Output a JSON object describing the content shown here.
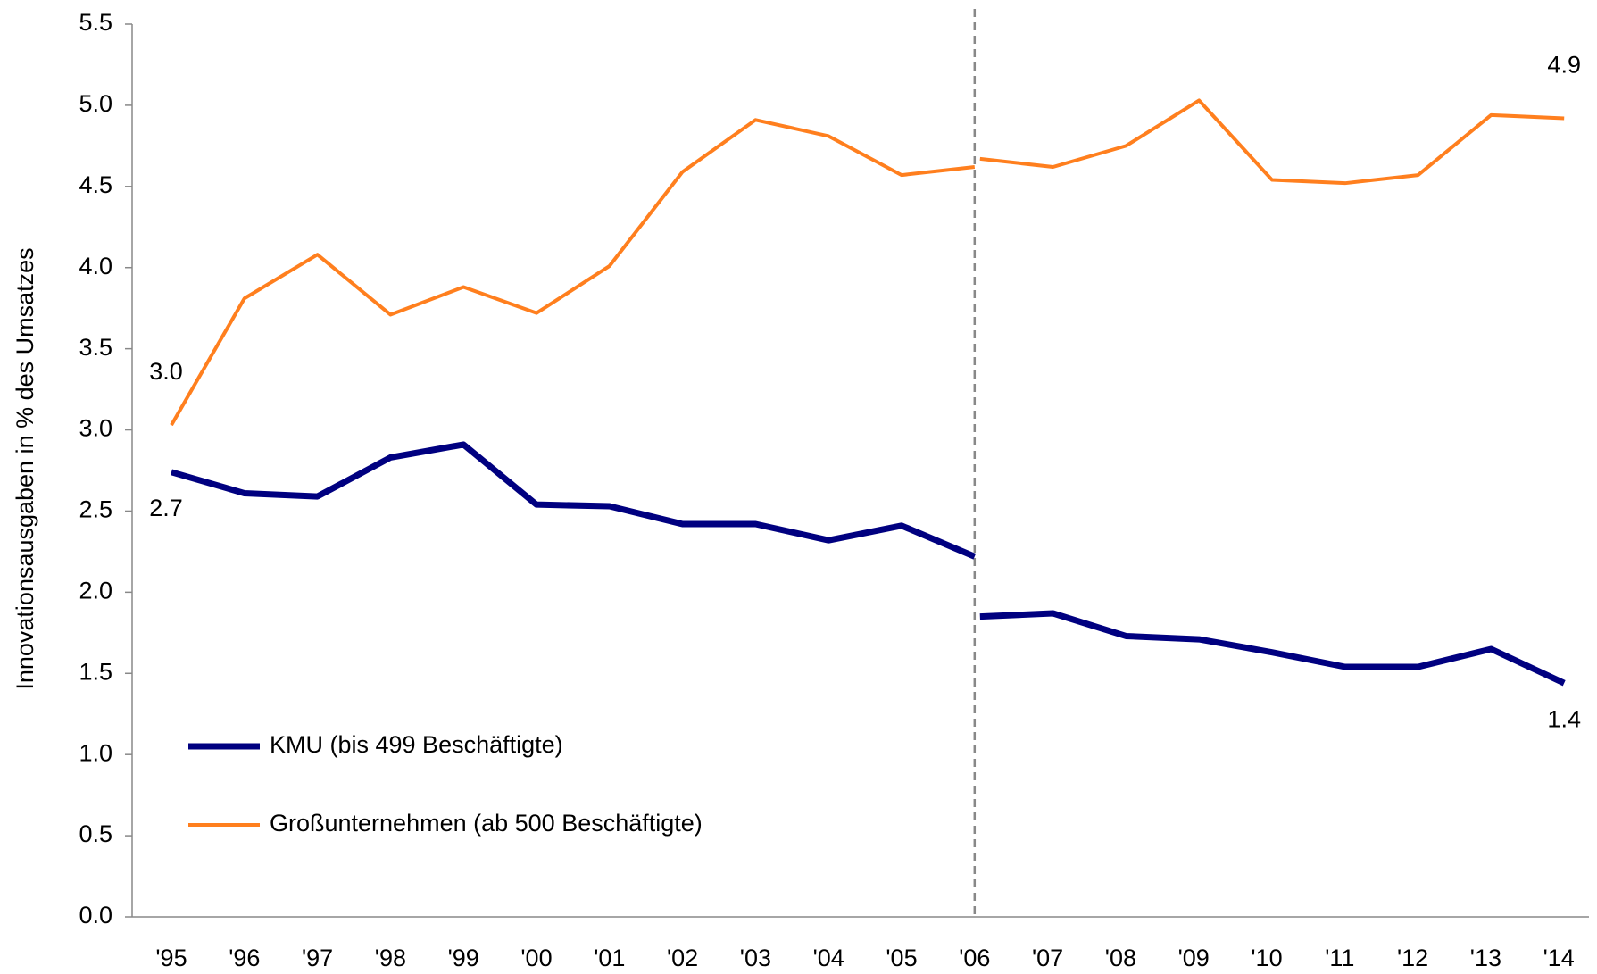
{
  "chart_data": {
    "type": "line",
    "ylabel": "Innovationsausgaben in % des Umsatzes",
    "categories": [
      "'95",
      "'96",
      "'97",
      "'98",
      "'99",
      "'00",
      "'01",
      "'02",
      "'03",
      "'04",
      "'05",
      "'06",
      "'07",
      "'08",
      "'09",
      "'10",
      "'11",
      "'12",
      "'13",
      "'14"
    ],
    "ylim": [
      0,
      5.5
    ],
    "yticks": [
      {
        "value": 0,
        "label": "0.0"
      },
      0.5,
      {
        "value": 1,
        "label": "1.0"
      },
      1.5,
      {
        "value": 2,
        "label": "2.0"
      },
      2.5,
      {
        "value": 3,
        "label": "3.0"
      },
      3.5,
      {
        "value": 4,
        "label": "4.0"
      },
      4.5,
      {
        "value": 5,
        "label": "5.0"
      },
      5.5
    ],
    "vline_at": "'06",
    "legend": "lower left",
    "series": [
      {
        "name": "KMU (bis 499 Beschäftigte)",
        "color": "#000080",
        "width": 7,
        "values": [
          2.74,
          2.61,
          2.59,
          2.83,
          2.91,
          2.54,
          2.53,
          2.42,
          2.42,
          2.32,
          2.41,
          2.22,
          null,
          null,
          null,
          null,
          null,
          null,
          null,
          null
        ],
        "value_labels": [
          "2.7",
          null,
          null,
          null,
          null,
          null,
          null,
          null,
          null,
          null,
          null,
          null,
          null,
          null,
          null,
          null,
          null,
          null,
          null,
          null
        ],
        "values_new": [
          null,
          null,
          null,
          null,
          null,
          null,
          null,
          null,
          null,
          null,
          null,
          1.85,
          1.87,
          1.73,
          1.71,
          1.63,
          1.54,
          1.54,
          1.65,
          1.44
        ],
        "value_labels_new": [
          null,
          null,
          null,
          null,
          null,
          null,
          null,
          null,
          null,
          null,
          null,
          null,
          null,
          null,
          null,
          null,
          null,
          null,
          null,
          "1.4"
        ]
      },
      {
        "name": "Großunternehmen (ab 500 Beschäftigte)",
        "color": "#ff7f1e",
        "width": 4,
        "values": [
          3.03,
          3.81,
          4.08,
          3.71,
          3.88,
          3.72,
          4.01,
          4.59,
          4.91,
          4.81,
          4.57,
          4.62,
          null,
          null,
          null,
          null,
          null,
          null,
          null,
          null
        ],
        "value_labels": [
          "3.0",
          null,
          null,
          null,
          null,
          null,
          null,
          null,
          null,
          null,
          null,
          null,
          null,
          null,
          null,
          null,
          null,
          null,
          null,
          null
        ],
        "values_new": [
          null,
          null,
          null,
          null,
          null,
          null,
          null,
          null,
          null,
          null,
          null,
          4.67,
          4.62,
          4.75,
          5.03,
          4.54,
          4.52,
          4.57,
          4.94,
          4.92
        ],
        "value_labels_new": [
          null,
          null,
          null,
          null,
          null,
          null,
          null,
          null,
          null,
          null,
          null,
          null,
          null,
          null,
          null,
          null,
          null,
          null,
          null,
          "4.9"
        ]
      }
    ]
  }
}
